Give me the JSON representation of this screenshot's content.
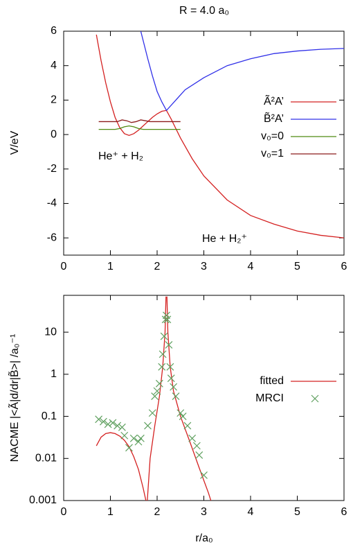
{
  "chart_data": [
    {
      "type": "line",
      "title": "R = 4.0 a₀",
      "ylabel": "V/eV",
      "xlim": [
        0,
        6
      ],
      "xticks": [
        0,
        1,
        2,
        3,
        4,
        5,
        6
      ],
      "ylim": [
        -7,
        6
      ],
      "yticks": [
        -6,
        -4,
        -2,
        0,
        2,
        4,
        6
      ],
      "legend": "right",
      "annotations": [
        "He⁺ + H₂",
        "He + H₂⁺"
      ],
      "series": [
        {
          "name": "Ã²A’",
          "color": "#d42020",
          "x": [
            0.7,
            0.8,
            0.9,
            1.0,
            1.1,
            1.2,
            1.3,
            1.4,
            1.5,
            1.6,
            1.7,
            1.8,
            1.9,
            2.0,
            2.1,
            2.2,
            2.3,
            2.5,
            2.75,
            3.0,
            3.5,
            4.0,
            4.5,
            5.0,
            5.5,
            6.0
          ],
          "values": [
            5.8,
            4.3,
            3.0,
            1.9,
            1.0,
            0.4,
            0.05,
            -0.05,
            0.05,
            0.25,
            0.5,
            0.75,
            1.0,
            1.2,
            1.35,
            1.4,
            0.9,
            -0.2,
            -1.4,
            -2.4,
            -3.8,
            -4.7,
            -5.2,
            -5.6,
            -5.85,
            -6.0
          ]
        },
        {
          "name": "B̃²A’",
          "color": "#3030e8",
          "x": [
            1.65,
            1.8,
            1.9,
            2.0,
            2.1,
            2.2,
            2.4,
            2.6,
            3.0,
            3.5,
            4.0,
            4.5,
            5.0,
            5.5,
            6.0
          ],
          "values": [
            6.0,
            4.4,
            3.4,
            2.5,
            1.9,
            1.4,
            2.0,
            2.6,
            3.3,
            4.0,
            4.4,
            4.7,
            4.85,
            4.95,
            5.0
          ]
        },
        {
          "name": "v₀=0",
          "color": "#4f8a10",
          "x": [
            0.75,
            1.1,
            1.2,
            1.3,
            1.4,
            1.5,
            1.6,
            1.7,
            2.5
          ],
          "values": [
            0.3,
            0.3,
            0.35,
            0.45,
            0.5,
            0.45,
            0.35,
            0.3,
            0.3
          ]
        },
        {
          "name": "v₀=1",
          "color": "#8b1a1a",
          "x": [
            0.75,
            1.15,
            1.25,
            1.35,
            1.45,
            1.55,
            1.65,
            1.75,
            1.85,
            2.5
          ],
          "values": [
            0.75,
            0.75,
            0.85,
            0.8,
            0.7,
            0.75,
            0.85,
            0.8,
            0.75,
            0.75
          ]
        }
      ]
    },
    {
      "type": "line",
      "xlabel": "r/a₀",
      "ylabel": "NACME |<Ã|d/dr|B̃>| /a₀⁻¹",
      "xlim": [
        0,
        6
      ],
      "xticks": [
        0,
        1,
        2,
        3,
        4,
        5,
        6
      ],
      "ylim": [
        0.001,
        75
      ],
      "yticks": [
        0.001,
        0.01,
        0.1,
        1,
        10
      ],
      "log_y": true,
      "legend": "right",
      "series": [
        {
          "name": "fitted",
          "color": "#d42020",
          "x": [
            0.7,
            0.8,
            0.9,
            1.0,
            1.1,
            1.2,
            1.3,
            1.4,
            1.5,
            1.6,
            1.7,
            1.76,
            1.77,
            1.79,
            1.85,
            1.95,
            2.05,
            2.12,
            2.17,
            2.19,
            2.2,
            2.21,
            2.23,
            2.28,
            2.35,
            2.5,
            2.7,
            2.9,
            3.1,
            3.15
          ],
          "values": [
            0.02,
            0.032,
            0.039,
            0.041,
            0.039,
            0.034,
            0.027,
            0.019,
            0.011,
            0.0055,
            0.002,
            0.001,
            null,
            0.001,
            0.01,
            0.06,
            0.3,
            1.5,
            10,
            70,
            null,
            70,
            10,
            1.5,
            0.4,
            0.1,
            0.025,
            0.006,
            0.0015,
            0.001
          ]
        },
        {
          "name": "MRCI",
          "color": "#5fa05f",
          "marker": "x",
          "x": [
            0.75,
            0.85,
            0.95,
            1.05,
            1.15,
            1.25,
            1.3,
            1.4,
            1.5,
            1.6,
            1.65,
            1.8,
            1.9,
            1.95,
            2.0,
            2.05,
            2.1,
            2.12,
            2.15,
            2.18,
            2.2,
            2.22,
            2.25,
            2.28,
            2.3,
            2.35,
            2.4,
            2.5,
            2.55,
            2.65,
            2.75,
            2.85,
            2.9,
            3.0
          ],
          "values": [
            0.085,
            0.075,
            0.065,
            0.07,
            0.06,
            0.055,
            0.035,
            0.018,
            0.03,
            0.025,
            0.03,
            0.06,
            0.12,
            0.3,
            0.4,
            0.6,
            1.5,
            3,
            8,
            20,
            25,
            20,
            5,
            1.5,
            0.8,
            0.5,
            0.3,
            0.12,
            0.1,
            0.06,
            0.03,
            0.02,
            0.012,
            0.004
          ]
        }
      ]
    }
  ]
}
